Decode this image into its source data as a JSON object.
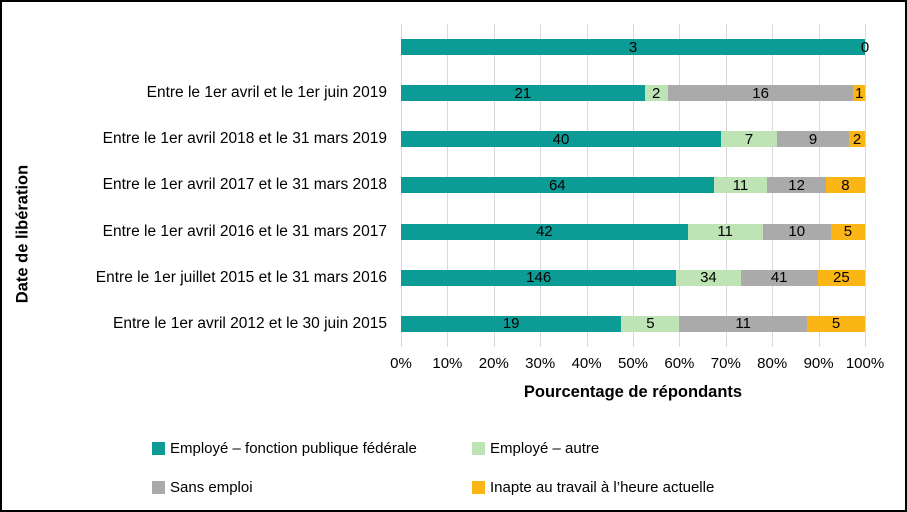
{
  "chart_data": {
    "type": "bar",
    "variant": "horizontal-stacked-100pct",
    "categories": [
      "",
      "Entre le 1er avril et le 1er juin 2019",
      "Entre le 1er avril 2018 et le 31 mars 2019",
      "Entre le 1er avril 2017 et le 31 mars 2018",
      "Entre le 1er avril 2016 et le 31 mars 2017",
      "Entre le 1er juillet 2015 et le 31 mars 2016",
      "Entre le 1er avril 2012 et le 30 juin 2015"
    ],
    "series": [
      {
        "name": "Employé – fonction publique fédérale",
        "color": "#0D9B95",
        "values": [
          3,
          21,
          40,
          64,
          42,
          146,
          19
        ]
      },
      {
        "name": "Employé – autre",
        "color": "#BEE3B4",
        "values": [
          0,
          2,
          7,
          11,
          11,
          34,
          5
        ]
      },
      {
        "name": "Sans emploi",
        "color": "#AAAAAA",
        "values": [
          null,
          16,
          9,
          12,
          10,
          41,
          11
        ]
      },
      {
        "name": "Inapte au travail à l’heure actuelle",
        "color": "#FBB615",
        "values": [
          null,
          1,
          2,
          8,
          5,
          25,
          5
        ]
      }
    ],
    "xlabel": "Pourcentage de répondants",
    "ylabel": "Date de libération",
    "x_ticks": [
      "0%",
      "10%",
      "20%",
      "30%",
      "40%",
      "50%",
      "60%",
      "70%",
      "80%",
      "90%",
      "100%"
    ],
    "xlim": [
      0,
      100
    ],
    "grid": "vertical-only",
    "gridline_color": "#D9D9D9",
    "legend_position": "bottom-two-columns",
    "data_labels": "shown-inside-segments"
  }
}
